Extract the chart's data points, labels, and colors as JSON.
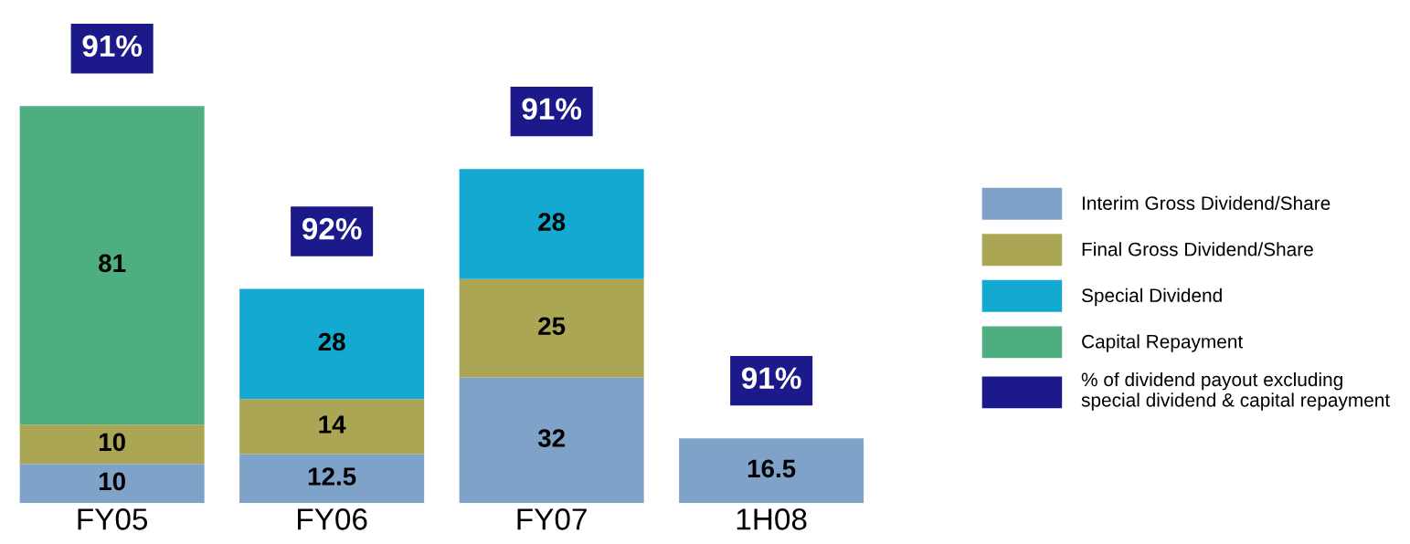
{
  "chart_data": {
    "type": "bar",
    "stacked": true,
    "categories": [
      "FY05",
      "FY06",
      "FY07",
      "1H08"
    ],
    "series": [
      {
        "name": "Interim Gross Dividend/Share",
        "color": "#7fa3c8",
        "values": [
          10,
          12.5,
          32,
          16.5
        ]
      },
      {
        "name": "Final Gross Dividend/Share",
        "color": "#aaa653",
        "values": [
          10,
          14,
          25,
          null
        ]
      },
      {
        "name": "Special Dividend",
        "color": "#14a9d0",
        "values": [
          null,
          28,
          28,
          null
        ]
      },
      {
        "name": "Capital Repayment",
        "color": "#4fae80",
        "values": [
          81,
          null,
          null,
          null
        ]
      },
      {
        "name": "% of dividend payout excluding special dividend & capital repayment",
        "color": "#1c1a8a",
        "values": [
          null,
          null,
          null,
          null
        ]
      }
    ],
    "data_labels": true,
    "tick_labels": "x",
    "legend": "right",
    "grid": false,
    "annotations": [
      "91%",
      "92%",
      "91%",
      "91%"
    ]
  }
}
